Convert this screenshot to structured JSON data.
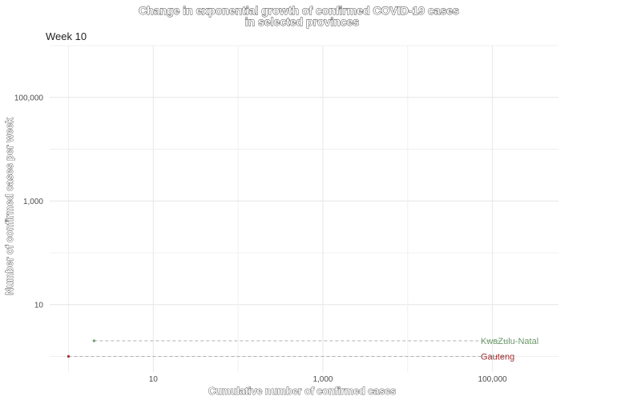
{
  "chart_data": {
    "type": "line",
    "title_line1": "Change in exponential growth of confirmed COVID-19 cases",
    "title_line2": "in selected provinces",
    "subtitle": "Week 10",
    "xlabel": "Cumulative number of confirmed cases",
    "ylabel": "Number of confirmed cases per week",
    "x_scale": "log10",
    "y_scale": "log10",
    "xlim": [
      0.6,
      600000
    ],
    "ylim": [
      0.5,
      1000000
    ],
    "x_ticks": [
      {
        "value": 10,
        "label": "10"
      },
      {
        "value": 1000,
        "label": "1,000"
      },
      {
        "value": 100000,
        "label": "100,000"
      }
    ],
    "y_ticks": [
      {
        "value": 10,
        "label": "10"
      },
      {
        "value": 1000,
        "label": "1,000"
      },
      {
        "value": 100000,
        "label": "100,000"
      }
    ],
    "grid": true,
    "series": [
      {
        "name": "KwaZulu-Natal",
        "color": "#6a9a6a",
        "point": {
          "x": 2,
          "y": 2
        },
        "trend_end": {
          "x": 150000,
          "y": 2
        }
      },
      {
        "name": "Gauteng",
        "color": "#a03030",
        "point": {
          "x": 1,
          "y": 1
        },
        "trend_end": {
          "x": 150000,
          "y": 1
        }
      }
    ]
  }
}
